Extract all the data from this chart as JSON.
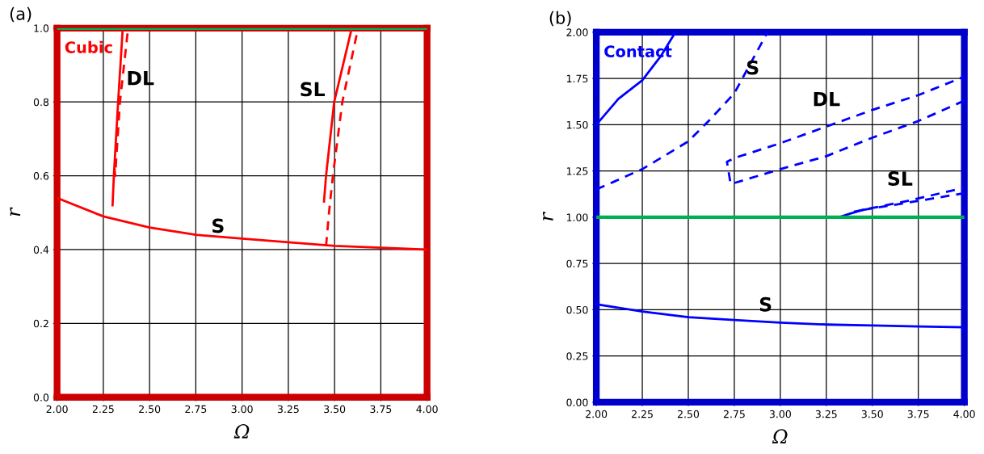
{
  "chart_data": [
    {
      "type": "line",
      "xlabel": "Ω",
      "ylabel": "r",
      "xlim": [
        2.0,
        4.0
      ],
      "ylim": [
        0.0,
        1.0
      ],
      "xticks": [
        {
          "value": 2.0,
          "label": "2.00"
        },
        {
          "value": 2.25,
          "label": "2.25"
        },
        {
          "value": 2.5,
          "label": "2.50"
        },
        {
          "value": 2.75,
          "label": "2.75"
        },
        {
          "value": 3.0,
          "label": "3.00"
        },
        {
          "value": 3.25,
          "label": "3.25"
        },
        {
          "value": 3.5,
          "label": "3.50"
        },
        {
          "value": 3.75,
          "label": "3.75"
        },
        {
          "value": 4.0,
          "label": "4.00"
        }
      ],
      "yticks": [
        {
          "value": 0.0,
          "label": "0.0"
        },
        {
          "value": 0.2,
          "label": "0.2"
        },
        {
          "value": 0.4,
          "label": "0.4"
        },
        {
          "value": 0.6,
          "label": "0.6"
        },
        {
          "value": 0.8,
          "label": "0.8"
        },
        {
          "value": 1.0,
          "label": "1.0"
        }
      ],
      "grid": true,
      "legend": false,
      "series": [
        {
          "color": "#ff0000",
          "line_style": "solid",
          "x": [
            2.0,
            2.25,
            2.5,
            2.75,
            3.0,
            3.25,
            3.5,
            3.75,
            4.0
          ],
          "values": [
            0.54,
            0.49,
            0.46,
            0.44,
            0.43,
            0.42,
            0.41,
            0.405,
            0.4
          ]
        },
        {
          "color": "#ff0000",
          "line_style": "solid",
          "x": [
            2.3,
            2.307,
            2.33,
            2.355
          ],
          "values": [
            0.52,
            0.6,
            0.8,
            1.0
          ]
        },
        {
          "color": "#ff0000",
          "line_style": "dashed",
          "x": [
            2.31,
            2.314,
            2.34,
            2.384
          ],
          "values": [
            0.62,
            0.6,
            0.8,
            1.0
          ]
        },
        {
          "color": "#ff0000",
          "line_style": "solid",
          "x": [
            3.443,
            3.454,
            3.498,
            3.593
          ],
          "values": [
            0.53,
            0.6,
            0.8,
            1.0
          ]
        },
        {
          "color": "#ff0000",
          "line_style": "dashed",
          "x": [
            3.454,
            3.472,
            3.491,
            3.542,
            3.627
          ],
          "values": [
            0.41,
            0.51,
            0.6,
            0.8,
            1.0
          ]
        }
      ],
      "ref_lines": [
        {
          "axis": "y",
          "value": 1.0,
          "color": "#00b050"
        }
      ],
      "annotations": [
        "(a)",
        "Cubic",
        "DL",
        "SL",
        "S"
      ]
    },
    {
      "type": "line",
      "xlabel": "Ω",
      "ylabel": "r",
      "xlim": [
        2.0,
        4.0
      ],
      "ylim": [
        0.0,
        2.0
      ],
      "xticks": [
        {
          "value": 2.0,
          "label": "2.00"
        },
        {
          "value": 2.25,
          "label": "2.25"
        },
        {
          "value": 2.5,
          "label": "2.50"
        },
        {
          "value": 2.75,
          "label": "2.75"
        },
        {
          "value": 3.0,
          "label": "3.00"
        },
        {
          "value": 3.25,
          "label": "3.25"
        },
        {
          "value": 3.5,
          "label": "3.50"
        },
        {
          "value": 3.75,
          "label": "3.75"
        },
        {
          "value": 4.0,
          "label": "4.00"
        }
      ],
      "yticks": [
        {
          "value": 0.0,
          "label": "0.00"
        },
        {
          "value": 0.25,
          "label": "0.25"
        },
        {
          "value": 0.5,
          "label": "0.50"
        },
        {
          "value": 0.75,
          "label": "0.75"
        },
        {
          "value": 1.0,
          "label": "1.00"
        },
        {
          "value": 1.25,
          "label": "1.25"
        },
        {
          "value": 1.5,
          "label": "1.50"
        },
        {
          "value": 1.75,
          "label": "1.75"
        },
        {
          "value": 2.0,
          "label": "2.00"
        }
      ],
      "grid": true,
      "legend": false,
      "series": [
        {
          "color": "#0000ff",
          "line_style": "solid",
          "x": [
            2.0,
            2.25,
            2.5,
            2.75,
            3.0,
            3.25,
            3.5,
            3.75,
            4.0
          ],
          "values": [
            0.53,
            0.49,
            0.46,
            0.445,
            0.43,
            0.42,
            0.415,
            0.41,
            0.405
          ]
        },
        {
          "color": "#0000ff",
          "line_style": "solid",
          "x": [
            2.0,
            2.12,
            2.25,
            2.35,
            2.43
          ],
          "values": [
            1.5,
            1.64,
            1.74,
            1.87,
            2.0
          ]
        },
        {
          "color": "#0000ff",
          "line_style": "dashed",
          "x": [
            2.0,
            2.25,
            2.5,
            2.62,
            2.75,
            2.93
          ],
          "values": [
            1.15,
            1.26,
            1.41,
            1.53,
            1.67,
            2.0
          ]
        },
        {
          "color": "#0000ff",
          "line_style": "dashed",
          "x": [
            4.0,
            3.75,
            3.5,
            3.25,
            3.0,
            2.75,
            2.73,
            2.71,
            2.75,
            3.0,
            3.25,
            3.5,
            3.75,
            4.0
          ],
          "values": [
            1.63,
            1.52,
            1.43,
            1.33,
            1.26,
            1.185,
            1.18,
            1.3,
            1.32,
            1.4,
            1.49,
            1.58,
            1.66,
            1.76
          ]
        },
        {
          "color": "#0000ff",
          "line_style": "solid",
          "x": [
            3.32,
            3.38,
            3.45
          ],
          "values": [
            1.0,
            1.02,
            1.04
          ]
        },
        {
          "color": "#0000ff",
          "line_style": "dashed",
          "x": [
            3.4,
            3.7,
            4.0
          ],
          "values": [
            1.03,
            1.09,
            1.16
          ]
        },
        {
          "color": "#0000ff",
          "line_style": "dashed",
          "x": [
            3.45,
            3.7,
            4.0
          ],
          "values": [
            1.04,
            1.08,
            1.13
          ]
        }
      ],
      "ref_lines": [
        {
          "axis": "y",
          "value": 1.0,
          "color": "#00b050"
        }
      ],
      "annotations": [
        "(b)",
        "Contact",
        "S",
        "DL",
        "SL",
        "S"
      ]
    }
  ]
}
